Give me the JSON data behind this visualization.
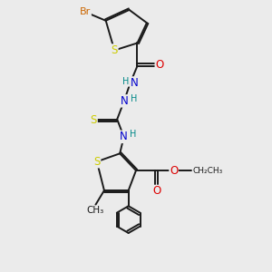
{
  "bg_color": "#ebebeb",
  "bond_color": "#1a1a1a",
  "bond_lw": 1.4,
  "dbl_off": 0.055,
  "atom_colors": {
    "Br": "#cc6600",
    "S": "#cccc00",
    "O": "#dd0000",
    "N": "#0000cc",
    "H": "#008888",
    "C": "#1a1a1a"
  },
  "fs": 8.5,
  "fss": 7.0
}
